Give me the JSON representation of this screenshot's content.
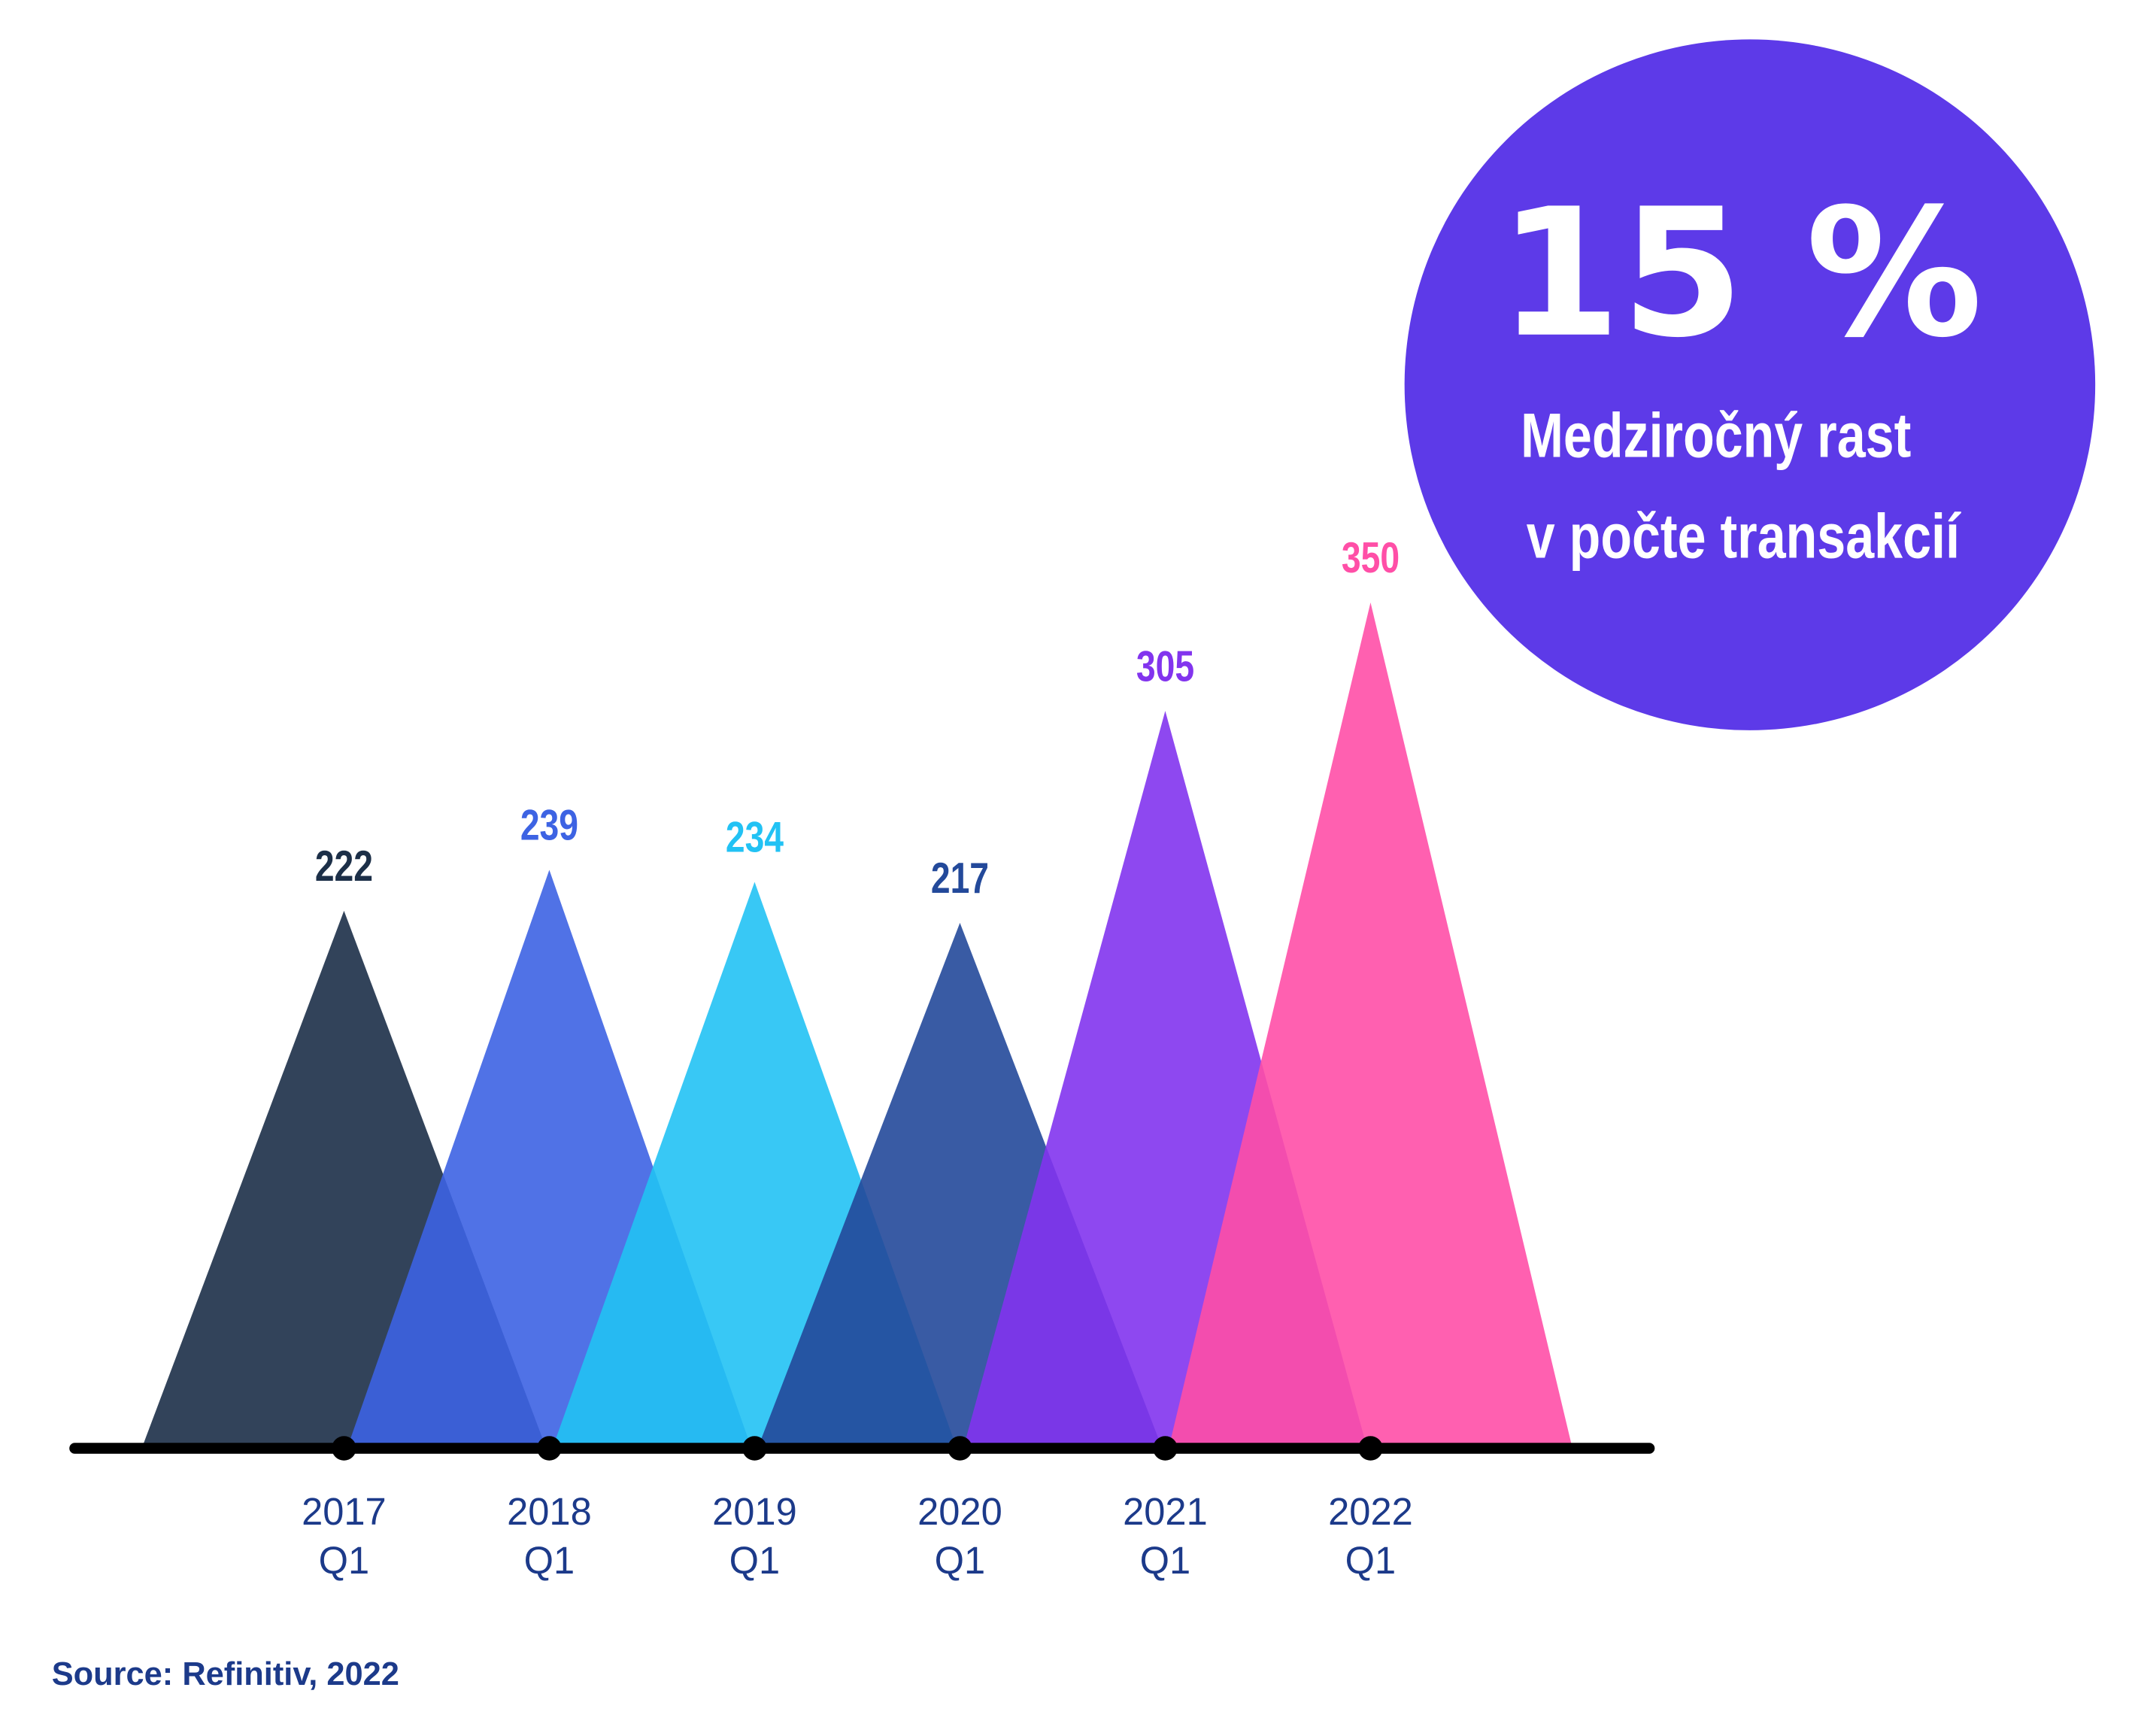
{
  "chart_data": {
    "type": "triangle",
    "categories": [
      "2017 Q1",
      "2018 Q1",
      "2019 Q1",
      "2020 Q1",
      "2021 Q1",
      "2022 Q1"
    ],
    "values": [
      222,
      239,
      234,
      217,
      305,
      350
    ],
    "colors": [
      "#1c2f48",
      "#3d63e3",
      "#22c2f4",
      "#23499a",
      "#8234ee",
      "#ff4fa7"
    ],
    "ylim": [
      0,
      350
    ],
    "callout": {
      "value": 15,
      "label": "15 %",
      "lines": [
        "Medziročný rast",
        "v počte transakcií"
      ]
    },
    "source": "Source: Refinitiv, 2022"
  }
}
